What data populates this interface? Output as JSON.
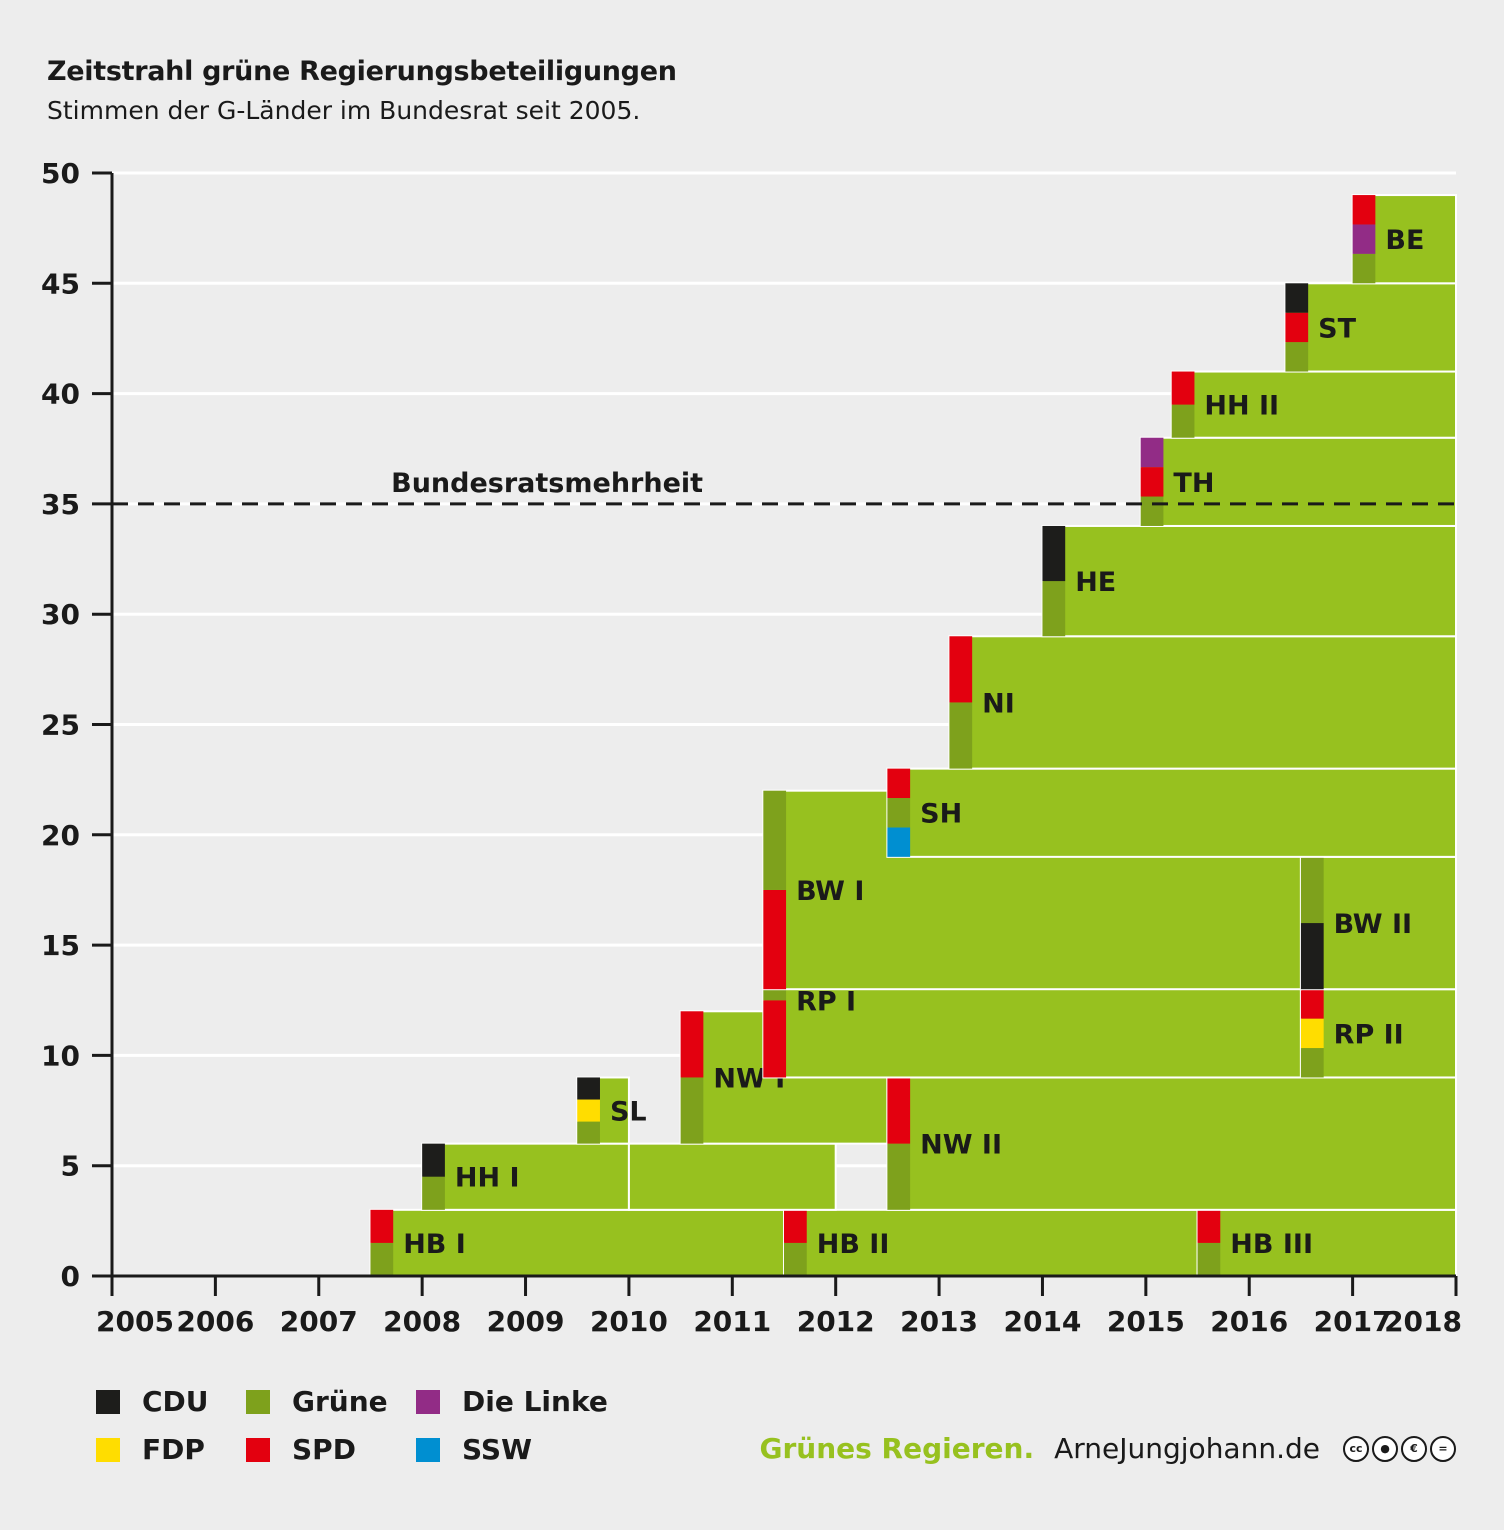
{
  "header": {
    "title": "Zeitstrahl grüne Regierungsbeteiligungen",
    "subtitle": "Stimmen der G-Länder im Bundesrat seit 2005."
  },
  "legend": [
    {
      "name": "CDU",
      "color": "#1d1d1b"
    },
    {
      "name": "Grüne",
      "color": "#7ea11c"
    },
    {
      "name": "Die Linke",
      "color": "#922c86"
    },
    {
      "name": "FDP",
      "color": "#ffdd00"
    },
    {
      "name": "SPD",
      "color": "#e3000f"
    },
    {
      "name": "SSW",
      "color": "#008fd1"
    }
  ],
  "footer": {
    "brand": "Grünes Regieren.",
    "site": "ArneJungjohann.de",
    "license_icons": [
      "cc-icon",
      "by-icon",
      "nc-icon",
      "nd-icon"
    ]
  },
  "chart_data": {
    "type": "area",
    "xlabel": "",
    "ylabel": "",
    "x_ticks": [
      2005,
      2006,
      2007,
      2008,
      2009,
      2010,
      2011,
      2012,
      2013,
      2014,
      2015,
      2016,
      2017,
      2018
    ],
    "y_ticks": [
      0,
      5,
      10,
      15,
      20,
      25,
      30,
      35,
      40,
      45,
      50
    ],
    "xlim": [
      2005,
      2018
    ],
    "ylim": [
      0,
      50
    ],
    "grid": true,
    "fill_color": "#97c11f",
    "reference_line": {
      "y": 35,
      "label": "Bundesratsmehrheit"
    },
    "segments": [
      {
        "label": "HB I",
        "start": 2007.5,
        "end": 2011.6,
        "y0": 0,
        "y1": 3,
        "parties": [
          "Grüne",
          "SPD"
        ]
      },
      {
        "label": "HB II",
        "start": 2011.5,
        "end": 2015.5,
        "y0": 0,
        "y1": 3,
        "parties": [
          "Grüne",
          "SPD"
        ]
      },
      {
        "label": "HB III",
        "start": 2015.5,
        "end": 2018,
        "y0": 0,
        "y1": 3,
        "parties": [
          "Grüne",
          "SPD"
        ]
      },
      {
        "label": "HH I",
        "start": 2008,
        "end": 2010,
        "y0": 3,
        "y1": 6,
        "parties": [
          "Grüne",
          "CDU"
        ]
      },
      {
        "label": "",
        "start": 2010,
        "end": 2012,
        "y0": 3,
        "y1": 6,
        "parties": []
      },
      {
        "label": "SL",
        "start": 2009.5,
        "end": 2010,
        "y0": 6,
        "y1": 9,
        "parties": [
          "Grüne",
          "FDP",
          "CDU"
        ]
      },
      {
        "label": "NW I",
        "start": 2010.5,
        "end": 2012.5,
        "y0": 6,
        "y1": 12,
        "parties": [
          "Grüne",
          "SPD"
        ]
      },
      {
        "label": "NW II",
        "start": 2012.5,
        "end": 2018,
        "y0": 3,
        "y1": 9,
        "parties": [
          "Grüne",
          "SPD"
        ]
      },
      {
        "label": "RP I",
        "start": 2011.3,
        "end": 2016.5,
        "y0": 9,
        "y1": 16,
        "parties": [
          "SPD",
          "Grüne"
        ]
      },
      {
        "label": "RP II",
        "start": 2016.5,
        "end": 2018,
        "y0": 9,
        "y1": 13,
        "parties": [
          "Grüne",
          "FDP",
          "SPD"
        ]
      },
      {
        "label": "BW I",
        "start": 2011.3,
        "end": 2016.5,
        "y0": 13,
        "y1": 22,
        "parties": [
          "SPD",
          "Grüne"
        ]
      },
      {
        "label": "BW II",
        "start": 2016.5,
        "end": 2018,
        "y0": 13,
        "y1": 19,
        "parties": [
          "CDU",
          "Grüne"
        ]
      },
      {
        "label": "SH",
        "start": 2012.5,
        "end": 2018,
        "y0": 19,
        "y1": 23,
        "parties": [
          "SSW",
          "Grüne",
          "SPD"
        ]
      },
      {
        "label": "NI",
        "start": 2013.1,
        "end": 2018,
        "y0": 23,
        "y1": 29,
        "parties": [
          "Grüne",
          "SPD"
        ]
      },
      {
        "label": "HE",
        "start": 2014,
        "end": 2018,
        "y0": 29,
        "y1": 34,
        "parties": [
          "Grüne",
          "CDU"
        ]
      },
      {
        "label": "TH",
        "start": 2014.95,
        "end": 2018,
        "y0": 34,
        "y1": 38,
        "parties": [
          "Grüne",
          "SPD",
          "Die Linke"
        ]
      },
      {
        "label": "HH II",
        "start": 2015.25,
        "end": 2018,
        "y0": 38,
        "y1": 41,
        "parties": [
          "Grüne",
          "SPD"
        ]
      },
      {
        "label": "ST",
        "start": 2016.35,
        "end": 2018,
        "y0": 41,
        "y1": 45,
        "parties": [
          "Grüne",
          "SPD",
          "CDU"
        ]
      },
      {
        "label": "BE",
        "start": 2017.0,
        "end": 2018,
        "y0": 45,
        "y1": 49,
        "parties": [
          "Grüne",
          "Die Linke",
          "SPD"
        ]
      }
    ]
  }
}
